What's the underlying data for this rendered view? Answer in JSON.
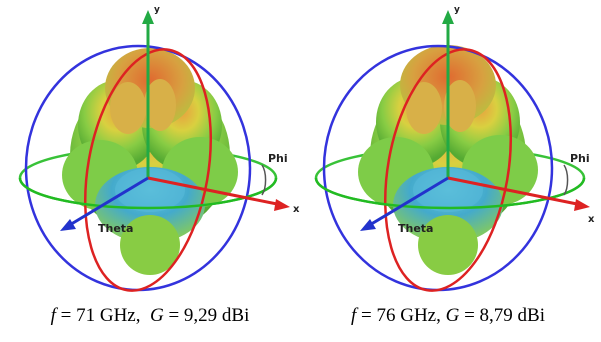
{
  "axes": {
    "y": "y",
    "x": "x",
    "phi": "Phi",
    "theta": "Theta"
  },
  "panels": [
    {
      "f_symbol": "f",
      "f_value": "= 71 GHz,",
      "g_symbol": "G",
      "g_value": "= 9,29 dBi"
    },
    {
      "f_symbol": "f",
      "f_value": "= 76 GHz,",
      "g_symbol": "G",
      "g_value": "= 8,79 dBi"
    }
  ],
  "colors": {
    "blue_ring": "#3333dd",
    "red_ring": "#dd2222",
    "green_ring": "#22bb22",
    "axis_green": "#22aa44",
    "axis_red": "#dd2222",
    "axis_blue": "#2233cc"
  }
}
